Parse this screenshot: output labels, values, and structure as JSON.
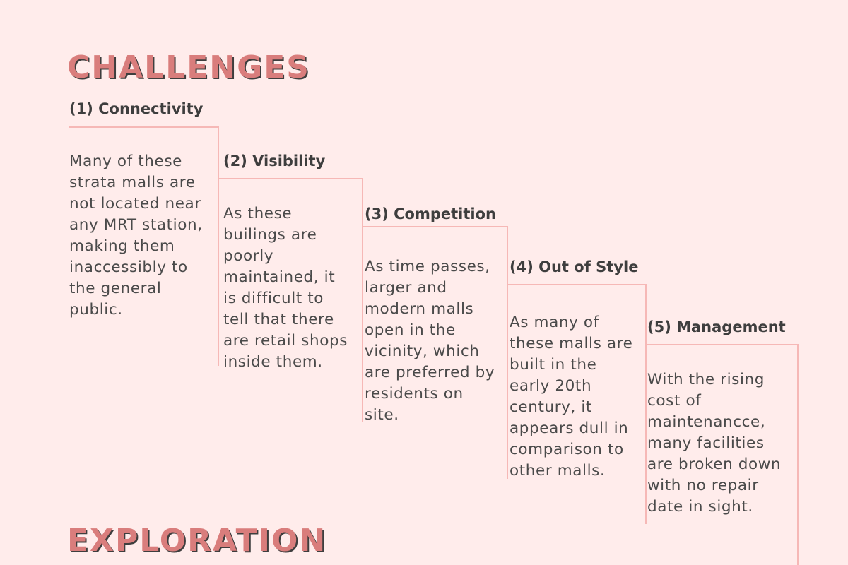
{
  "colors": {
    "background": "#ffeceb",
    "heading": "#d97d7c",
    "heading_shadow": "#3e3e3e",
    "line": "#f6b8b6",
    "text": "#4a4a4a"
  },
  "challenges_title": "CHALLENGES",
  "challenges": [
    {
      "title": "(1) Connectivity",
      "lines": [
        "Many of these",
        "strata malls are",
        "not located near",
        "any MRT station,",
        "making them",
        "inaccessibly to",
        "the general",
        "public."
      ]
    },
    {
      "title": "(2) Visibility",
      "lines": [
        "As these",
        "builings are",
        "poorly",
        "maintained, it",
        "is difficult to",
        "tell that there",
        "are retail shops",
        "inside them."
      ]
    },
    {
      "title": "(3) Competition",
      "lines": [
        "As time passes,",
        "larger and",
        "modern malls",
        "open in the",
        "vicinity, which",
        "are preferred by",
        "residents on",
        "site."
      ]
    },
    {
      "title": "(4) Out of Style",
      "lines": [
        "As many of",
        "these malls are",
        "built in the",
        "early 20th",
        "century, it",
        "appears dull in",
        "comparison to",
        "other malls."
      ]
    },
    {
      "title": "(5) Management",
      "lines": [
        "With the rising",
        "cost of",
        "maintenancce,",
        "many facilities",
        "are broken down",
        "with no repair",
        "date in sight."
      ]
    }
  ],
  "exploration_title": "EXPLORATION"
}
